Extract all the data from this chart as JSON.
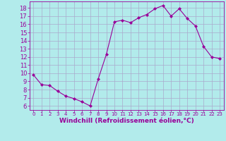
{
  "x": [
    0,
    1,
    2,
    3,
    4,
    5,
    6,
    7,
    8,
    9,
    10,
    11,
    12,
    13,
    14,
    15,
    16,
    17,
    18,
    19,
    20,
    21,
    22,
    23
  ],
  "y": [
    9.8,
    8.6,
    8.5,
    7.8,
    7.2,
    6.9,
    6.5,
    6.0,
    9.3,
    12.3,
    16.3,
    16.5,
    16.2,
    16.8,
    17.2,
    17.9,
    18.3,
    17.0,
    17.9,
    16.7,
    15.8,
    13.3,
    12.0,
    11.8
  ],
  "line_color": "#990099",
  "marker": "D",
  "markersize": 2,
  "linewidth": 0.8,
  "xlabel": "Windchill (Refroidissement éolien,°C)",
  "xlabel_fontsize": 6.5,
  "bg_color": "#b2ebeb",
  "grid_color": "#aaaacc",
  "tick_color": "#990099",
  "label_color": "#990099",
  "xlim": [
    -0.5,
    23.5
  ],
  "ylim": [
    5.5,
    18.8
  ],
  "yticks": [
    6,
    7,
    8,
    9,
    10,
    11,
    12,
    13,
    14,
    15,
    16,
    17,
    18
  ],
  "xticks": [
    0,
    1,
    2,
    3,
    4,
    5,
    6,
    7,
    8,
    9,
    10,
    11,
    12,
    13,
    14,
    15,
    16,
    17,
    18,
    19,
    20,
    21,
    22,
    23
  ],
  "ytick_fontsize": 6,
  "xtick_fontsize": 5
}
